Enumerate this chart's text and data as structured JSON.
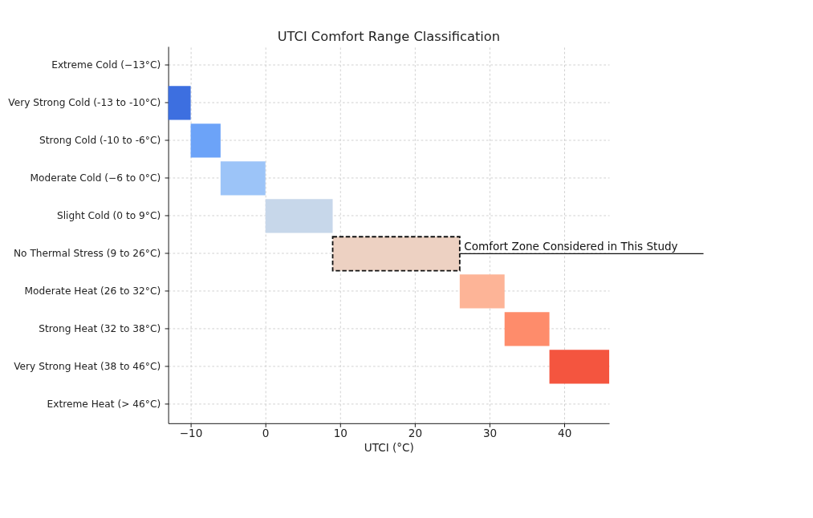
{
  "chart_data": {
    "type": "bar",
    "orientation": "horizontal",
    "title": "UTCI Comfort Range Classification",
    "xlabel": "UTCI (°C)",
    "categories": [
      "Extreme Cold (−13°C)",
      "Very Strong Cold (-13 to -10°C)",
      "Strong Cold (-10 to -6°C)",
      "Moderate Cold (−6 to 0°C)",
      "Slight Cold (0 to  9°C)",
      "No Thermal Stress (9 to 26°C)",
      "Moderate Heat (26 to 32°C)",
      "Strong Heat (32 to 38°C)",
      "Very Strong Heat (38 to 46°C)",
      "Extreme Heat (> 46°C)"
    ],
    "base": [
      null,
      -13,
      -10,
      -6,
      0,
      9,
      26,
      32,
      38,
      null
    ],
    "values": [
      null,
      3,
      4,
      6,
      9,
      17,
      6,
      6,
      8,
      null
    ],
    "colors": [
      null,
      "#3d6fe0",
      "#6ca3f8",
      "#9cc4f8",
      "#c7d7ea",
      "#edd1c2",
      "#fdb497",
      "#fe8c6b",
      "#f4553f",
      null
    ],
    "xlim": [
      -13,
      46
    ],
    "xticks": [
      -10,
      0,
      10,
      20,
      30,
      40
    ],
    "grid": true,
    "annotations": [
      {
        "text": "Comfort Zone Considered in This Study",
        "x": 26,
        "y": "No Thermal Stress (9 to 26°C)"
      }
    ]
  }
}
